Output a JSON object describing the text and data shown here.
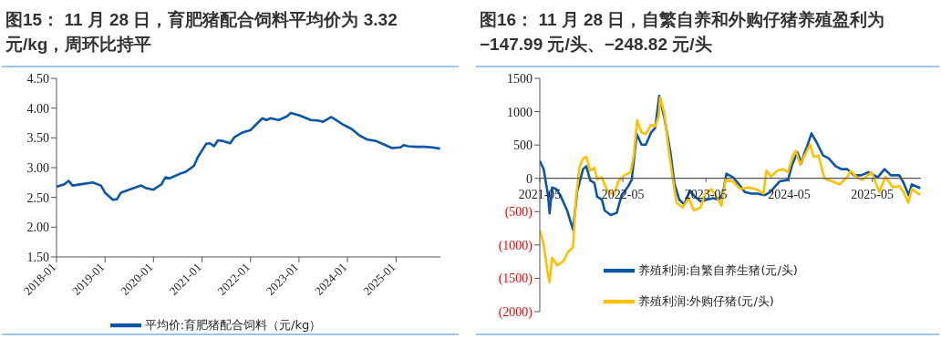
{
  "chart_data": [
    {
      "type": "line",
      "title": "图15：  11 月 28 日，育肥猪配合饲料平均价为 3.32 元/kg，周环比持平",
      "xlim": [
        "2018-01",
        "2025-12"
      ],
      "xticks": [
        "2018-01",
        "2019-01",
        "2020-01",
        "2021-01",
        "2022-01",
        "2023-01",
        "2024-01",
        "2025-01"
      ],
      "ylim": [
        1.5,
        4.5
      ],
      "yticks": [
        {
          "value": 1.5,
          "label": "1.50"
        },
        {
          "value": 2,
          "label": "2.00"
        },
        {
          "value": 2.5,
          "label": "2.50"
        },
        {
          "value": 3,
          "label": "3.00"
        },
        {
          "value": 3.5,
          "label": "3.50"
        },
        {
          "value": 4,
          "label": "4.00"
        },
        {
          "value": 4.5,
          "label": "4.50"
        }
      ],
      "legend": "bottom",
      "series": [
        {
          "name": "平均价:育肥猪配合饲料（元/kg）",
          "color": "#0a56a8",
          "x": [
            "2018-01",
            "2018-03",
            "2018-04",
            "2018-05",
            "2018-08",
            "2018-10",
            "2018-12",
            "2019-01",
            "2019-03",
            "2019-04",
            "2019-05",
            "2019-07",
            "2019-10",
            "2019-11",
            "2020-01",
            "2020-03",
            "2020-04",
            "2020-05",
            "2020-08",
            "2020-09",
            "2020-11",
            "2020-12",
            "2021-02",
            "2021-03",
            "2021-04",
            "2021-05",
            "2021-06",
            "2021-08",
            "2021-09",
            "2021-11",
            "2022-01",
            "2022-02",
            "2022-04",
            "2022-05",
            "2022-06",
            "2022-08",
            "2022-10",
            "2022-11",
            "2023-01",
            "2023-04",
            "2023-06",
            "2023-07",
            "2023-09",
            "2023-10",
            "2023-12",
            "2024-02",
            "2024-04",
            "2024-06",
            "2024-08",
            "2024-10",
            "2024-12",
            "2025-02",
            "2025-03",
            "2025-04",
            "2025-06",
            "2025-08",
            "2025-10",
            "2025-11-28"
          ],
          "values": [
            2.68,
            2.72,
            2.78,
            2.7,
            2.73,
            2.75,
            2.7,
            2.58,
            2.46,
            2.47,
            2.58,
            2.63,
            2.7,
            2.66,
            2.63,
            2.72,
            2.84,
            2.82,
            2.91,
            2.93,
            3.03,
            3.18,
            3.4,
            3.41,
            3.36,
            3.46,
            3.45,
            3.41,
            3.51,
            3.59,
            3.63,
            3.7,
            3.83,
            3.8,
            3.83,
            3.8,
            3.86,
            3.92,
            3.88,
            3.8,
            3.79,
            3.77,
            3.85,
            3.81,
            3.72,
            3.65,
            3.54,
            3.47,
            3.45,
            3.39,
            3.33,
            3.34,
            3.38,
            3.36,
            3.35,
            3.35,
            3.34,
            3.32
          ]
        }
      ]
    },
    {
      "type": "line",
      "title": "图16：  11 月 28 日，自繁自养和外购仔猪养殖盈利为−147.99 元/头、−248.82 元/头",
      "xlim": [
        "2021-05",
        "2025-12"
      ],
      "xticks": [
        "2021-05",
        "2022-05",
        "2023-05",
        "2024-05",
        "2025-05"
      ],
      "ylim": [
        -2000,
        1500
      ],
      "yticks": [
        {
          "value": -2000,
          "label": "(2000)"
        },
        {
          "value": -1500,
          "label": "(1500)"
        },
        {
          "value": -1000,
          "label": "(1000)"
        },
        {
          "value": -500,
          "label": "(500)"
        },
        0,
        500,
        1000,
        1500
      ],
      "legend": "bottom left",
      "series": [
        {
          "name": "养殖利润:自繁自养生猪(元/头)",
          "color": "#0a56a8",
          "x": [
            "2021-05-01",
            "2021-05-18",
            "2021-06-06",
            "2021-06-13",
            "2021-06-24",
            "2021-07-12",
            "2021-07-30",
            "2021-08-29",
            "2021-09-24",
            "2021-10-12",
            "2021-11-07",
            "2021-11-21",
            "2021-12-09",
            "2021-12-27",
            "2022-01-08",
            "2022-01-29",
            "2022-02-10",
            "2022-03-09",
            "2022-04-04",
            "2022-04-26",
            "2022-05-21",
            "2022-06-09",
            "2022-07-01",
            "2022-07-22",
            "2022-08-10",
            "2022-09-02",
            "2022-09-20",
            "2022-10-08",
            "2022-10-30",
            "2022-11-17",
            "2022-11-28",
            "2022-12-13",
            "2023-01-04",
            "2023-01-26",
            "2023-02-20",
            "2023-03-13",
            "2023-04-08",
            "2023-05-03",
            "2023-06-02",
            "2023-06-27",
            "2023-07-15",
            "2023-07-30",
            "2023-08-28",
            "2023-09-24",
            "2023-10-19",
            "2023-11-17",
            "2023-12-13",
            "2024-01-15",
            "2024-02-07",
            "2024-03-02",
            "2024-03-20",
            "2024-04-26",
            "2024-05-14",
            "2024-06-06",
            "2024-06-24",
            "2024-07-08",
            "2024-07-19",
            "2024-08-07",
            "2024-08-28",
            "2024-09-27",
            "2024-10-22",
            "2024-11-21",
            "2024-12-16",
            "2025-01-11",
            "2025-02-10",
            "2025-03-13",
            "2025-04-15",
            "2025-05-25",
            "2025-06-24",
            "2025-07-22",
            "2025-08-28",
            "2025-09-16",
            "2025-10-08",
            "2025-10-22",
            "2025-11-28"
          ],
          "values": [
            261,
            138,
            -252,
            -527,
            -138,
            -161,
            -252,
            -482,
            -771,
            -206,
            138,
            183,
            -32,
            -69,
            -275,
            -321,
            -482,
            -550,
            -518,
            -252,
            -138,
            -23,
            665,
            505,
            505,
            688,
            757,
            1239,
            917,
            573,
            344,
            -69,
            -321,
            -390,
            -183,
            -275,
            -344,
            -321,
            -298,
            -321,
            -229,
            69,
            14,
            -92,
            -206,
            -229,
            -229,
            -252,
            -206,
            -115,
            -46,
            -23,
            206,
            390,
            229,
            390,
            482,
            674,
            550,
            344,
            298,
            183,
            138,
            138,
            46,
            46,
            92,
            14,
            138,
            46,
            46,
            -69,
            -252,
            -92,
            -147.99
          ]
        },
        {
          "name": "养殖利润:外购仔猪(元/头)",
          "color": "#ffc000",
          "x": [
            "2021-05-01",
            "2021-05-18",
            "2021-06-06",
            "2021-06-13",
            "2021-06-24",
            "2021-07-17",
            "2021-08-13",
            "2021-09-03",
            "2021-09-24",
            "2021-10-06",
            "2021-10-22",
            "2021-11-07",
            "2021-11-21",
            "2021-12-09",
            "2021-12-27",
            "2022-01-08",
            "2022-01-29",
            "2022-02-18",
            "2022-03-22",
            "2022-04-11",
            "2022-05-08",
            "2022-06-04",
            "2022-06-18",
            "2022-07-03",
            "2022-07-22",
            "2022-08-10",
            "2022-09-02",
            "2022-09-20",
            "2022-10-06",
            "2022-10-12",
            "2022-10-30",
            "2022-11-20",
            "2022-12-03",
            "2022-12-23",
            "2023-01-19",
            "2023-02-15",
            "2023-03-09",
            "2023-04-08",
            "2023-04-28",
            "2023-05-25",
            "2023-06-21",
            "2023-07-08",
            "2023-07-27",
            "2023-08-27",
            "2023-09-30",
            "2023-11-03",
            "2023-12-06",
            "2024-01-09",
            "2024-01-22",
            "2024-02-12",
            "2024-03-09",
            "2024-04-05",
            "2024-04-26",
            "2024-05-17",
            "2024-05-30",
            "2024-06-18",
            "2024-07-08",
            "2024-08-01",
            "2024-08-17",
            "2024-09-07",
            "2024-10-03",
            "2024-11-06",
            "2024-12-09",
            "2025-01-12",
            "2025-01-26",
            "2025-02-22",
            "2025-03-19",
            "2025-04-28",
            "2025-06-01",
            "2025-06-28",
            "2025-07-31",
            "2025-08-28",
            "2025-09-16",
            "2025-10-06",
            "2025-10-22",
            "2025-11-28"
          ],
          "values": [
            -780,
            -986,
            -1445,
            -1560,
            -1193,
            -1307,
            -1239,
            -1101,
            -1032,
            -344,
            161,
            298,
            321,
            115,
            161,
            -14,
            14,
            -161,
            -252,
            -46,
            46,
            92,
            344,
            872,
            688,
            665,
            803,
            780,
            940,
            1216,
            986,
            390,
            69,
            -367,
            -436,
            -298,
            -482,
            -436,
            -229,
            -161,
            -298,
            -413,
            -23,
            -46,
            -161,
            -138,
            -161,
            -229,
            115,
            23,
            115,
            138,
            92,
            344,
            413,
            206,
            344,
            505,
            321,
            344,
            0,
            -46,
            -92,
            23,
            115,
            14,
            -23,
            92,
            -206,
            23,
            -138,
            -115,
            -206,
            -367,
            -161,
            -248.82
          ]
        }
      ]
    }
  ]
}
